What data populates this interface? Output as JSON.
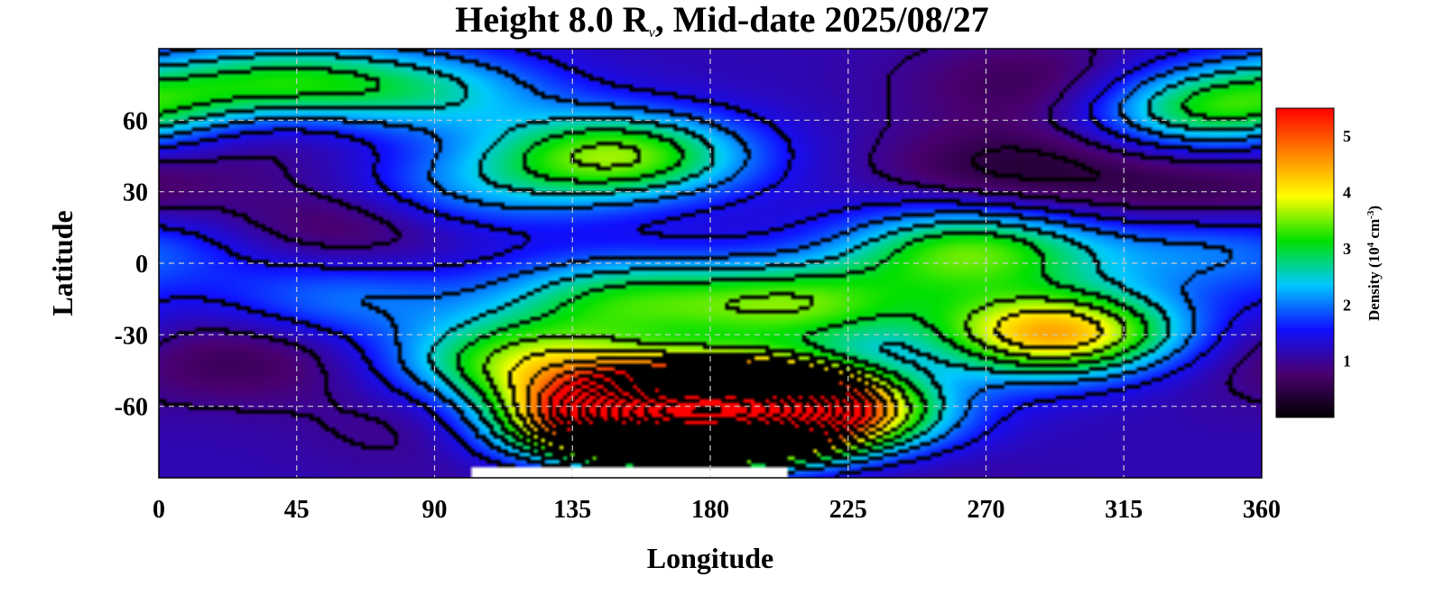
{
  "chart_data": {
    "type": "heatmap",
    "title_main": "Height 8.0 R",
    "title_sub": "ν",
    "title_rest": ", Mid-date 2025/08/27",
    "xlabel": "Longitude",
    "ylabel": "Latitude",
    "xlim": [
      0,
      360
    ],
    "ylim": [
      -90,
      90
    ],
    "x_ticks": [
      "0",
      "45",
      "90",
      "135",
      "180",
      "225",
      "270",
      "315",
      "360"
    ],
    "y_ticks": [
      "60",
      "30",
      "0",
      "-30",
      "-60"
    ],
    "grid": true,
    "colorbar": {
      "label_pre": "Density (10",
      "label_exp1": "4",
      "label_mid": " cm",
      "label_exp2": "-3",
      "label_post": ")",
      "ticks": [
        "1",
        "2",
        "3",
        "4",
        "5"
      ],
      "range": [
        0,
        5.5
      ],
      "colors": [
        "#000000",
        "#4a0070",
        "#1010ff",
        "#00c8ff",
        "#00e000",
        "#ffff00",
        "#ff8000",
        "#ff0000"
      ]
    },
    "features": [
      {
        "lon": 168,
        "lat": -62,
        "value": 5.6
      },
      {
        "lon": 198,
        "lat": -58,
        "value": 4.6
      },
      {
        "lon": 148,
        "lat": -70,
        "value": 4.4
      },
      {
        "lon": 292,
        "lat": -30,
        "value": 4.6
      },
      {
        "lon": 210,
        "lat": -65,
        "value": 3.8
      },
      {
        "lon": 120,
        "lat": -42,
        "value": 3.4
      },
      {
        "lon": 210,
        "lat": -18,
        "value": 3.2
      },
      {
        "lon": 150,
        "lat": -15,
        "value": 2.8
      },
      {
        "lon": 265,
        "lat": 5,
        "value": 3.3
      },
      {
        "lon": 150,
        "lat": 45,
        "value": 3.5
      },
      {
        "lon": 40,
        "lat": 75,
        "value": 2.9
      },
      {
        "lon": 90,
        "lat": 72,
        "value": 2.3
      },
      {
        "lon": 345,
        "lat": 65,
        "value": 3.3
      },
      {
        "lon": 100,
        "lat": 30,
        "value": 2.0
      },
      {
        "lon": 60,
        "lat": -15,
        "value": 2.0
      },
      {
        "lon": 340,
        "lat": 5,
        "value": 1.9
      },
      {
        "lon": 30,
        "lat": 58,
        "value": 0.5
      },
      {
        "lon": 290,
        "lat": 75,
        "value": 0.5
      },
      {
        "lon": 280,
        "lat": 40,
        "value": 0.4
      },
      {
        "lon": 60,
        "lat": 15,
        "value": 0.5
      },
      {
        "lon": 340,
        "lat": 30,
        "value": 0.5
      },
      {
        "lon": 30,
        "lat": -40,
        "value": 0.6
      },
      {
        "lon": 250,
        "lat": -35,
        "value": 0.8
      },
      {
        "lon": 330,
        "lat": -40,
        "value": 0.9
      },
      {
        "lon": 104,
        "lat": -67,
        "value": 0.5
      },
      {
        "lon": 10,
        "lat": 10,
        "value": 1.4
      },
      {
        "lon": 150,
        "lat": -86,
        "value": 0.2
      },
      {
        "lon": 230,
        "lat": -86,
        "value": 0.8
      }
    ],
    "saturated_region": {
      "lon_range": [
        102,
        205
      ],
      "lat_max": -85,
      "color": "#ffffff"
    }
  }
}
